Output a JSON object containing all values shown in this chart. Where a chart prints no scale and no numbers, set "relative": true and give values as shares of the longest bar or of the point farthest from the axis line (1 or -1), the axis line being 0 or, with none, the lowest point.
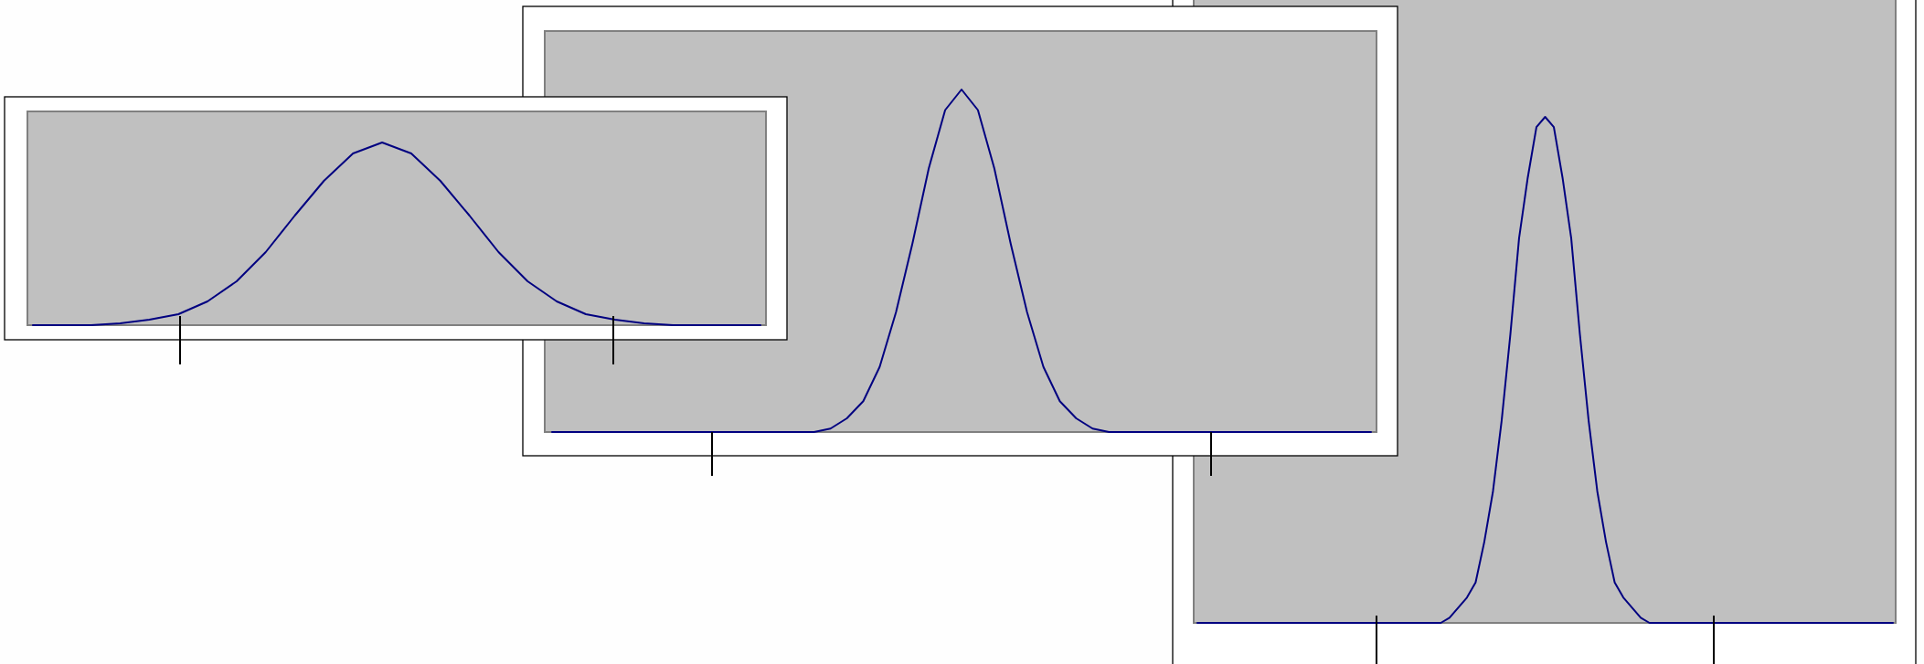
{
  "chart_data": [
    {
      "type": "line",
      "relative": true,
      "color": "#000080",
      "categories": [
        null,
        null,
        null,
        null,
        null,
        null,
        null,
        null,
        null,
        null,
        null,
        null,
        null,
        null,
        null,
        null,
        null,
        null,
        null,
        null,
        null,
        null,
        null,
        null,
        null,
        null
      ],
      "values": [
        0,
        0,
        0,
        0.01,
        0.03,
        0.06,
        0.13,
        0.24,
        0.4,
        0.6,
        0.79,
        0.94,
        1,
        0.94,
        0.79,
        0.6,
        0.4,
        0.24,
        0.13,
        0.06,
        0.03,
        0.01,
        0,
        0,
        0,
        0
      ]
    },
    {
      "type": "line",
      "relative": true,
      "color": "#000080",
      "categories": [
        null,
        null,
        null,
        null,
        null,
        null,
        null,
        null,
        null,
        null,
        null,
        null,
        null,
        null,
        null,
        null,
        null,
        null,
        null,
        null,
        null,
        null,
        null,
        null,
        null,
        null,
        null,
        null,
        null,
        null,
        null,
        null,
        null,
        null,
        null,
        null,
        null,
        null,
        null,
        null,
        null,
        null,
        null,
        null,
        null,
        null,
        null,
        null,
        null,
        null,
        null
      ],
      "values": [
        0,
        0,
        0,
        0,
        0,
        0,
        0,
        0,
        0,
        0,
        0,
        0,
        0,
        0,
        0,
        0,
        0,
        0.01,
        0.04,
        0.09,
        0.19,
        0.35,
        0.55,
        0.77,
        0.94,
        1,
        0.94,
        0.77,
        0.55,
        0.35,
        0.19,
        0.09,
        0.04,
        0.01,
        0,
        0,
        0,
        0,
        0,
        0,
        0,
        0,
        0,
        0,
        0,
        0,
        0,
        0,
        0,
        0,
        0
      ]
    },
    {
      "type": "line",
      "relative": true,
      "color": "#000080",
      "categories": [
        null,
        null,
        null,
        null,
        null,
        null,
        null,
        null,
        null,
        null,
        null,
        null,
        null,
        null,
        null,
        null,
        null,
        null,
        null,
        null,
        null,
        null,
        null,
        null,
        null,
        null,
        null,
        null,
        null,
        null,
        null,
        null,
        null,
        null,
        null,
        null,
        null,
        null,
        null,
        null,
        null,
        null,
        null,
        null,
        null,
        null,
        null,
        null,
        null,
        null,
        null,
        null,
        null,
        null,
        null,
        null,
        null,
        null,
        null,
        null,
        null,
        null,
        null,
        null,
        null,
        null,
        null,
        null,
        null,
        null,
        null,
        null,
        null,
        null,
        null,
        null,
        null,
        null,
        null,
        null,
        null
      ],
      "values": [
        0,
        0,
        0,
        0,
        0,
        0,
        0,
        0,
        0,
        0,
        0,
        0,
        0,
        0,
        0,
        0,
        0,
        0,
        0,
        0,
        0,
        0,
        0,
        0,
        0,
        0,
        0,
        0,
        0,
        0.01,
        0.03,
        0.05,
        0.08,
        0.16,
        0.26,
        0.4,
        0.57,
        0.76,
        0.88,
        0.98,
        1,
        0.98,
        0.88,
        0.76,
        0.57,
        0.4,
        0.26,
        0.16,
        0.08,
        0.05,
        0.03,
        0.01,
        0,
        0,
        0,
        0,
        0,
        0,
        0,
        0,
        0,
        0,
        0,
        0,
        0,
        0,
        0,
        0,
        0,
        0,
        0,
        0,
        0,
        0,
        0,
        0,
        0,
        0,
        0,
        0,
        0
      ]
    }
  ]
}
